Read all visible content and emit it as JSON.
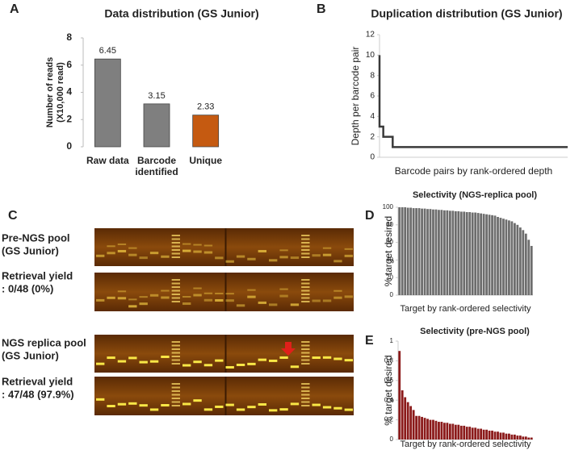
{
  "chart_data": [
    {
      "panel": "A",
      "type": "bar",
      "title": "Data distribution (GS Junior)",
      "y_label": [
        "Number of reads",
        "(X10,000 read)"
      ],
      "categories": [
        "Raw data",
        "Barcode identified",
        "Unique"
      ],
      "values": [
        6.45,
        3.15,
        2.33
      ],
      "colors": [
        "#7f7f7f",
        "#7f7f7f",
        "#c55a11"
      ],
      "ylim": [
        0,
        8
      ],
      "yticks": [
        0,
        2,
        4,
        6,
        8
      ]
    },
    {
      "panel": "B",
      "type": "line",
      "title": "Duplication distribution (GS Junior)",
      "y_label": "Depth per barcode pair",
      "x_label": "Barcode pairs by rank-ordered depth",
      "x": [
        0,
        0,
        2,
        2,
        7,
        7,
        100
      ],
      "values": [
        10,
        3,
        3,
        2,
        2,
        1,
        1
      ],
      "color": "#3a3a3a",
      "xlim": [
        0,
        100
      ],
      "ylim": [
        0,
        12
      ],
      "yticks": [
        0,
        2,
        4,
        6,
        8,
        10,
        12
      ]
    },
    {
      "panel": "D",
      "type": "bar",
      "title": "Selectivity (NGS-replica pool)",
      "y_label": "% target desired",
      "x_label": "Target by rank-ordered selectivity",
      "values": [
        100,
        100,
        100,
        99.5,
        99.5,
        99,
        99,
        99,
        98.5,
        98.5,
        98,
        98,
        97.5,
        97.5,
        97,
        97,
        96.5,
        96.5,
        96,
        96,
        95.5,
        95.5,
        95,
        95,
        94.5,
        94.5,
        94,
        94,
        93.5,
        93,
        92.5,
        92,
        91.5,
        91,
        90.5,
        89,
        88,
        87,
        86,
        85,
        84,
        82,
        80,
        77,
        74,
        70,
        63,
        56
      ],
      "color": "#6d6d6d",
      "ylim": [
        0,
        100
      ],
      "yticks": [
        0,
        20,
        40,
        60,
        80,
        100
      ]
    },
    {
      "panel": "E",
      "type": "bar",
      "title": "Selectivity (pre-NGS pool)",
      "y_label": "% target desired",
      "x_label": "Target by rank-ordered selectivity",
      "values": [
        0.9,
        0.5,
        0.43,
        0.38,
        0.34,
        0.3,
        0.24,
        0.24,
        0.23,
        0.22,
        0.21,
        0.2,
        0.2,
        0.19,
        0.18,
        0.18,
        0.17,
        0.17,
        0.16,
        0.16,
        0.15,
        0.15,
        0.14,
        0.14,
        0.13,
        0.13,
        0.12,
        0.12,
        0.11,
        0.11,
        0.1,
        0.1,
        0.09,
        0.09,
        0.08,
        0.08,
        0.07,
        0.07,
        0.06,
        0.06,
        0.05,
        0.05,
        0.04,
        0.04,
        0.03,
        0.03,
        0.02,
        0.02
      ],
      "color": "#8b1a1a",
      "ylim": [
        0,
        1
      ],
      "yticks": [
        0,
        0.2,
        0.4,
        0.6,
        0.8,
        1
      ]
    }
  ],
  "gel": {
    "panel": "C",
    "blocks": [
      {
        "pool": [
          "Pre-NGS pool",
          "(GS Junior)"
        ],
        "yield": [
          "Retrieval yield",
          ": 0/48 (0%)"
        ]
      },
      {
        "pool": [
          "NGS replica pool",
          "(GS Junior)"
        ],
        "yield": [
          "Retrieval yield",
          ": 47/48 (97.9%)"
        ]
      }
    ]
  }
}
